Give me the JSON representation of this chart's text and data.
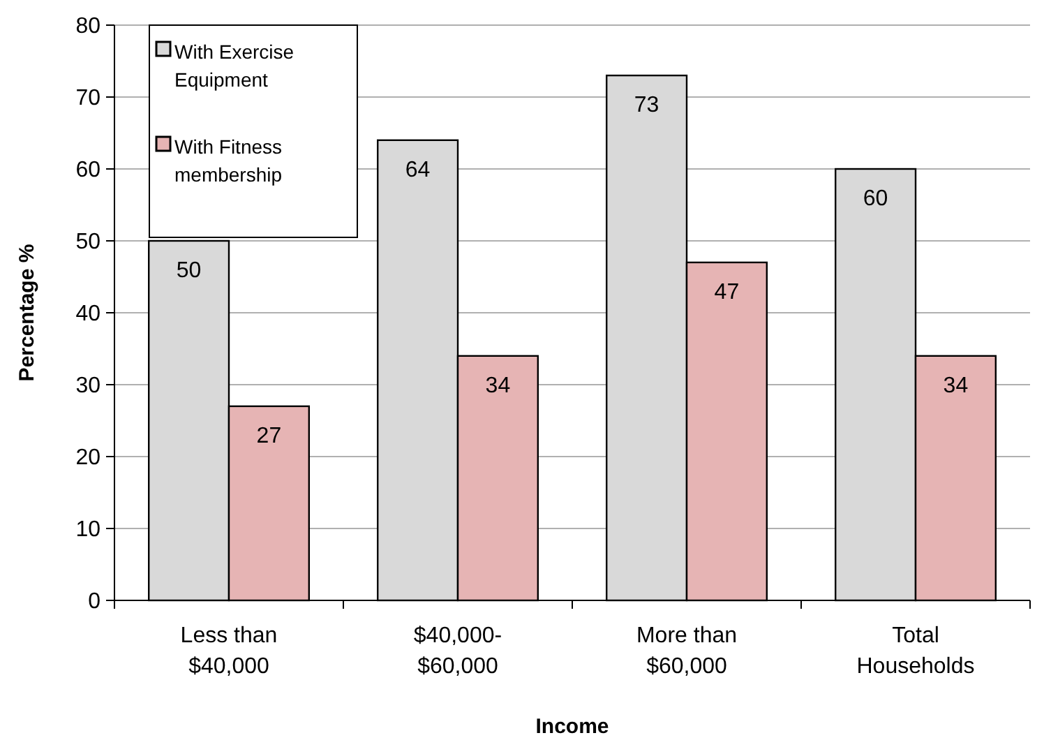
{
  "chart_data": {
    "type": "bar",
    "xlabel": "Income",
    "ylabel": "Percentage %",
    "categories": [
      "Less than\n$40,000",
      "$40,000-\n$60,000",
      "More than\n$60,000",
      "Total\nHouseholds"
    ],
    "series": [
      {
        "name": "With Exercise Equipment",
        "color": "#d9d9d9",
        "values": [
          50,
          64,
          73,
          60
        ]
      },
      {
        "name": "With Fitness membership",
        "color": "#e6b4b4",
        "values": [
          27,
          34,
          47,
          34
        ]
      }
    ],
    "ylim": [
      0,
      80
    ],
    "yticks": [
      0,
      10,
      20,
      30,
      40,
      50,
      60,
      70,
      80
    ],
    "grid": "y",
    "legend": "top left",
    "data_labels": true
  }
}
